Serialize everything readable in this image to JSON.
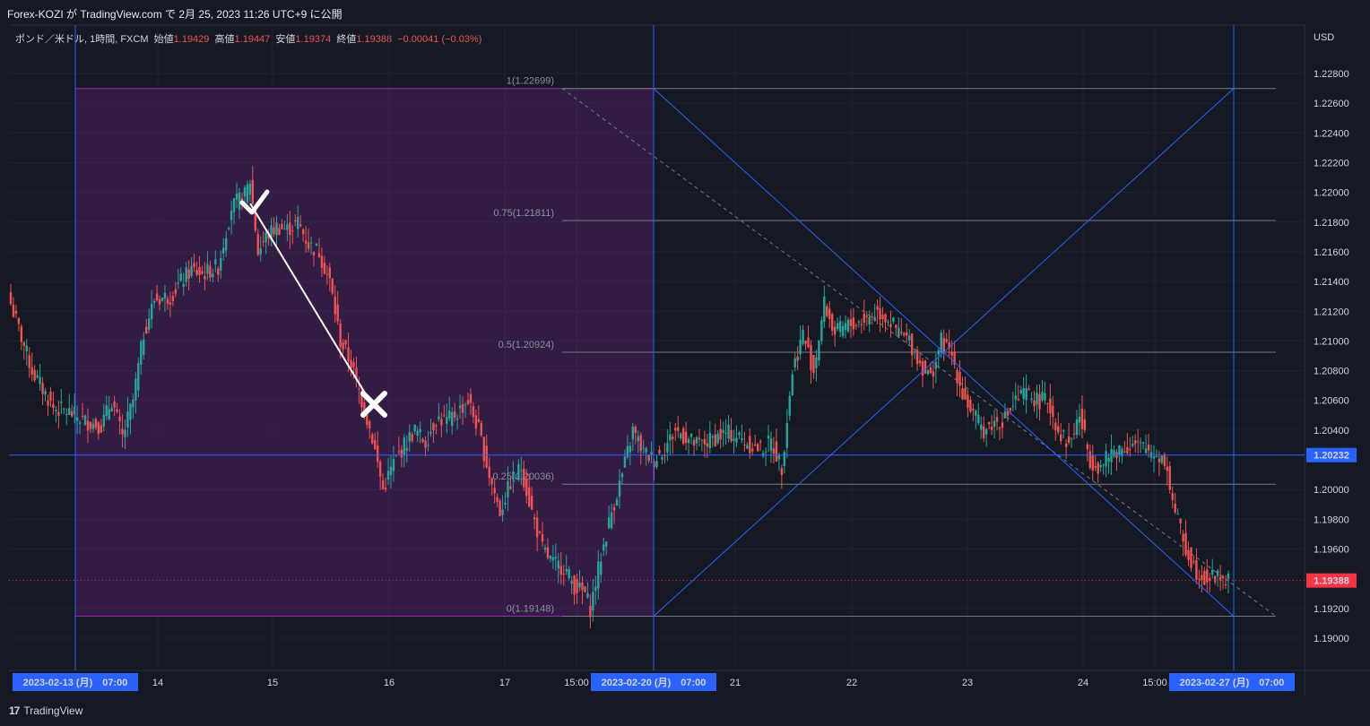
{
  "header": {
    "published": "Forex-KOZI が TradingView.com で 2月 25, 2023 11:26 UTC+9 に公開"
  },
  "legend": {
    "symbol": "ポンド／米ドル, 1時間, FXCM",
    "open_label": "始値",
    "open": "1.19429",
    "high_label": "高値",
    "high": "1.19447",
    "low_label": "安値",
    "low": "1.19374",
    "close_label": "終値",
    "close": "1.19388",
    "change": "−0.00041 (−0.03%)"
  },
  "footer": {
    "brand": "TradingView"
  },
  "colors": {
    "background": "#151924",
    "up": "#26a69a",
    "down": "#ef5350",
    "zone": "#9c27b0",
    "line": "#2962ff",
    "axis_badge": "#2962ff",
    "price_badge": "#f23645"
  },
  "icons": [
    "tradingview-logo-icon",
    "check-mark-icon",
    "cross-mark-icon"
  ],
  "chart_data": {
    "type": "candlestick",
    "currency_label": "USD",
    "y_ticks": [
      "1.19000",
      "1.19200",
      "1.19600",
      "1.19800",
      "1.20000",
      "1.20400",
      "1.20600",
      "1.20800",
      "1.21000",
      "1.21200",
      "1.21400",
      "1.21600",
      "1.21800",
      "1.22000",
      "1.22200",
      "1.22400",
      "1.22600",
      "1.22800"
    ],
    "ylim": [
      1.1894,
      1.2298
    ],
    "x_labels": [
      "14",
      "15",
      "16",
      "17",
      "15:00",
      "21",
      "22",
      "23",
      "24",
      "15:00"
    ],
    "x_highlight_labels": [
      "2023-02-13 (月)　07:00",
      "2023-02-20 (月)　07:00",
      "2023-02-27 (月)　07:00"
    ],
    "horizontal_line_price": "1.20232",
    "last_price": "1.19388",
    "fibonacci_levels": [
      {
        "label": "1(1.22699)",
        "price": 1.22699
      },
      {
        "label": "0.75(1.21811)",
        "price": 1.21811
      },
      {
        "label": "0.5(1.20924)",
        "price": 1.20924
      },
      {
        "label": "0.25(1.20036)",
        "price": 1.20036
      },
      {
        "label": "0(1.19148)",
        "price": 1.19148
      }
    ],
    "close_path": [
      [
        0,
        1.2125
      ],
      [
        8,
        1.208
      ],
      [
        16,
        1.2055
      ],
      [
        22,
        1.2052
      ],
      [
        28,
        1.2046
      ],
      [
        34,
        1.2043
      ],
      [
        38,
        1.206
      ],
      [
        42,
        1.2035
      ],
      [
        46,
        1.206
      ],
      [
        50,
        1.2105
      ],
      [
        54,
        1.2128
      ],
      [
        60,
        1.213
      ],
      [
        64,
        1.214
      ],
      [
        68,
        1.2148
      ],
      [
        72,
        1.2145
      ],
      [
        78,
        1.215
      ],
      [
        83,
        1.219
      ],
      [
        88,
        1.2198
      ],
      [
        90,
        1.2208
      ],
      [
        93,
        1.216
      ],
      [
        96,
        1.217
      ],
      [
        100,
        1.2177
      ],
      [
        104,
        1.2175
      ],
      [
        108,
        1.218
      ],
      [
        112,
        1.2165
      ],
      [
        116,
        1.216
      ],
      [
        120,
        1.214
      ],
      [
        124,
        1.21
      ],
      [
        128,
        1.2085
      ],
      [
        132,
        1.206
      ],
      [
        136,
        1.2035
      ],
      [
        140,
        1.2
      ],
      [
        144,
        1.2018
      ],
      [
        148,
        1.203
      ],
      [
        152,
        1.204
      ],
      [
        156,
        1.2032
      ],
      [
        160,
        1.2048
      ],
      [
        164,
        1.2046
      ],
      [
        168,
        1.2052
      ],
      [
        172,
        1.206
      ],
      [
        176,
        1.204
      ],
      [
        180,
        1.201
      ],
      [
        184,
        1.1985
      ],
      [
        188,
        1.2005
      ],
      [
        192,
        1.2015
      ],
      [
        196,
        1.1985
      ],
      [
        200,
        1.196
      ],
      [
        204,
        1.195
      ],
      [
        208,
        1.1948
      ],
      [
        212,
        1.1935
      ],
      [
        216,
        1.193
      ],
      [
        218,
        1.192
      ],
      [
        222,
        1.1955
      ],
      [
        226,
        1.1985
      ],
      [
        230,
        1.201
      ],
      [
        234,
        1.204
      ],
      [
        238,
        1.2025
      ],
      [
        242,
        1.202
      ],
      [
        246,
        1.2028
      ],
      [
        250,
        1.204
      ],
      [
        254,
        1.2035
      ],
      [
        258,
        1.203
      ],
      [
        262,
        1.2032
      ],
      [
        266,
        1.2036
      ],
      [
        270,
        1.2038
      ],
      [
        274,
        1.2035
      ],
      [
        278,
        1.203
      ],
      [
        282,
        1.2027
      ],
      [
        286,
        1.2032
      ],
      [
        290,
        1.2015
      ],
      [
        294,
        1.208
      ],
      [
        298,
        1.2105
      ],
      [
        302,
        1.208
      ],
      [
        306,
        1.2125
      ],
      [
        310,
        1.2105
      ],
      [
        314,
        1.211
      ],
      [
        318,
        1.2112
      ],
      [
        322,
        1.2115
      ],
      [
        326,
        1.212
      ],
      [
        330,
        1.2115
      ],
      [
        334,
        1.2105
      ],
      [
        338,
        1.21
      ],
      [
        342,
        1.2085
      ],
      [
        346,
        1.2075
      ],
      [
        350,
        1.21
      ],
      [
        354,
        1.209
      ],
      [
        358,
        1.2065
      ],
      [
        362,
        1.205
      ],
      [
        366,
        1.204
      ],
      [
        370,
        1.2045
      ],
      [
        374,
        1.2048
      ],
      [
        378,
        1.206
      ],
      [
        382,
        1.2065
      ],
      [
        386,
        1.206
      ],
      [
        390,
        1.206
      ],
      [
        394,
        1.204
      ],
      [
        398,
        1.203
      ],
      [
        402,
        1.205
      ],
      [
        406,
        1.202
      ],
      [
        410,
        1.2015
      ],
      [
        414,
        1.2025
      ],
      [
        418,
        1.2028
      ],
      [
        422,
        1.203
      ],
      [
        426,
        1.2028
      ],
      [
        430,
        1.2025
      ],
      [
        434,
        1.202
      ],
      [
        438,
        1.1985
      ],
      [
        442,
        1.196
      ],
      [
        446,
        1.1945
      ],
      [
        450,
        1.194
      ],
      [
        454,
        1.1942
      ],
      [
        458,
        1.1939
      ]
    ]
  }
}
